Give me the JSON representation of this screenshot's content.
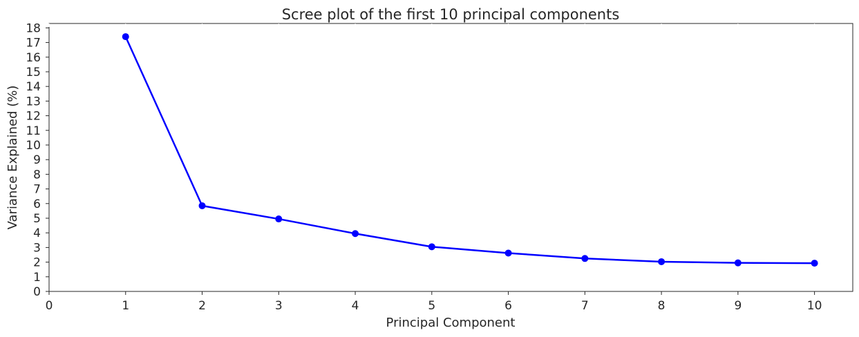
{
  "chart_data": {
    "type": "line",
    "title": "Scree plot of the first 10 principal components",
    "xlabel": "Principal Component",
    "ylabel": "Variance Explained (%)",
    "x": [
      1,
      2,
      3,
      4,
      5,
      6,
      7,
      8,
      9,
      10
    ],
    "series": [
      {
        "values": [
          17.4,
          5.85,
          4.95,
          3.95,
          3.05,
          2.62,
          2.25,
          2.03,
          1.95,
          1.93
        ]
      }
    ],
    "xlim": [
      0,
      10.5
    ],
    "ylim": [
      0,
      18.3
    ],
    "xticks": [
      "0",
      "1",
      "2",
      "3",
      "4",
      "5",
      "6",
      "7",
      "8",
      "9",
      "10"
    ],
    "yticks": [
      "0",
      "1",
      "2",
      "3",
      "4",
      "5",
      "6",
      "7",
      "8",
      "9",
      "10",
      "11",
      "12",
      "13",
      "14",
      "15",
      "16",
      "17",
      "18"
    ],
    "grid": false,
    "legend": "none",
    "line_color": "#0000ff",
    "marker_color": "#0000ff"
  }
}
